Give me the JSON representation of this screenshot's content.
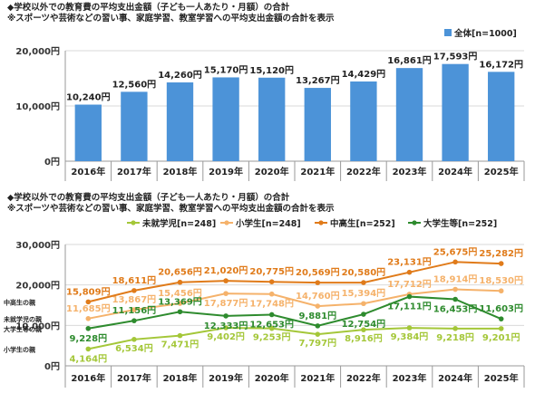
{
  "chart1": {
    "title": "◆学校以外での教育費の平均支出金額（子ども一人あたり・月額）の合計",
    "subtitle": "※スポーツや芸術などの習い事、家庭学習、教室学習への平均支出金額の合計を表示",
    "y_ticks": [
      "0円",
      "10,000円",
      "20,000円"
    ],
    "legend_label": "全体[n=1000]",
    "bar_color": "#4c93d8",
    "chart_data": {
      "type": "bar",
      "categories": [
        "2016年",
        "2017年",
        "2018年",
        "2019年",
        "2020年",
        "2021年",
        "2022年",
        "2023年",
        "2024年",
        "2025年"
      ],
      "values": [
        10240,
        12560,
        14260,
        15170,
        15120,
        13267,
        14429,
        16861,
        17593,
        16172
      ],
      "value_labels": [
        "10,240円",
        "12,560円",
        "14,260円",
        "15,170円",
        "15,120円",
        "13,267円",
        "14,429円",
        "16,861円",
        "17,593円",
        "16,172円"
      ],
      "ylim": [
        0,
        20000
      ],
      "series": [
        {
          "name": "全体[n=1000]",
          "values": [
            10240,
            12560,
            14260,
            15170,
            15120,
            13267,
            14429,
            16861,
            17593,
            16172
          ]
        }
      ],
      "grid": true,
      "legend": "top-right"
    }
  },
  "chart2": {
    "title": "◆学校以外での教育費の平均支出金額（子ども一人あたり・月額）の合計",
    "subtitle": "※スポーツや芸術などの習い事、家庭学習、教室学習への平均支出金額の合計を表示",
    "y_ticks": [
      "0円",
      "10,000円",
      "20,000円",
      "30,000円"
    ],
    "row_labels": [
      "中高生の親",
      "小学生の親",
      "大学生等の親",
      "未就学児の親"
    ],
    "chart_data": {
      "type": "line",
      "categories": [
        "2016年",
        "2017年",
        "2018年",
        "2019年",
        "2020年",
        "2021年",
        "2022年",
        "2023年",
        "2024年",
        "2025年"
      ],
      "ylim": [
        0,
        30000
      ],
      "grid": true,
      "legend": "top",
      "series": [
        {
          "name": "未就学児[n=248]",
          "color": "#a4c739",
          "values": [
            4164,
            6534,
            7471,
            9402,
            9253,
            7797,
            8916,
            9384,
            9218,
            9201
          ],
          "labels": [
            "4,164円",
            "6,534円",
            "7,471円",
            "9,402円",
            "9,253円",
            "7,797円",
            "8,916円",
            "9,384円",
            "9,218円",
            "9,201円"
          ]
        },
        {
          "name": "小学生[n=248]",
          "color": "#f5b26b",
          "values": [
            11685,
            13867,
            15456,
            17877,
            17748,
            14760,
            15394,
            17712,
            18914,
            18530
          ],
          "labels": [
            "11,685円",
            "13,867円",
            "15,456円",
            "17,877円",
            "17,748円",
            "14,760円",
            "15,394円",
            "17,712円",
            "18,914円",
            "18,530円"
          ]
        },
        {
          "name": "中高生[n=252]",
          "color": "#e07b1a",
          "values": [
            15809,
            18611,
            20656,
            21020,
            20775,
            20569,
            20580,
            23131,
            25675,
            25282
          ],
          "labels": [
            "15,809円",
            "18,611円",
            "20,656円",
            "21,020円",
            "20,775円",
            "20,569円",
            "20,580円",
            "23,131円",
            "25,675円",
            "25,282円"
          ]
        },
        {
          "name": "大学生等[n=252]",
          "color": "#2e8b2e",
          "values": [
            9228,
            11156,
            13369,
            12333,
            12653,
            9881,
            12754,
            17111,
            16453,
            11603
          ],
          "labels": [
            "9,228円",
            "11,156円",
            "13,369円",
            "12,333円",
            "12,653円",
            "9,881円",
            "12,754円",
            "17,111円",
            "16,453円",
            "11,603円"
          ]
        }
      ]
    }
  }
}
